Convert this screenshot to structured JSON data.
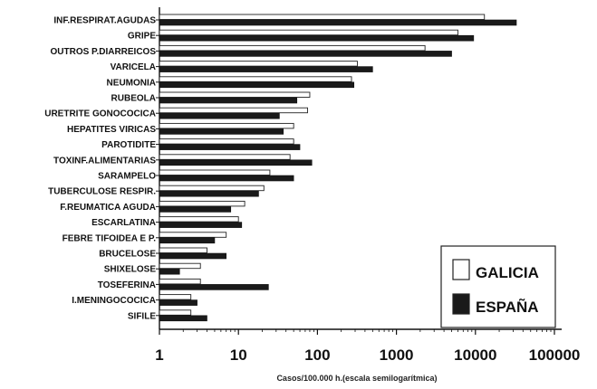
{
  "chart_data": {
    "type": "bar",
    "orientation": "horizontal",
    "x_scale": "log",
    "xlim": [
      1,
      100000
    ],
    "xlabel": "Casos/100.000 h.(escala semilogarítmica)",
    "x_ticks": [
      "1",
      "10",
      "100",
      "1000",
      "10000",
      "100000"
    ],
    "categories": [
      "INF.RESPIRAT.AGUDAS",
      "GRIPE",
      "OUTROS P.DIARREICOS",
      "VARICELA",
      "NEUMONIA",
      "RUBEOLA",
      "URETRITE GONOCOCICA",
      "HEPATITES VIRICAS",
      "PAROTIDITE",
      "TOXINF.ALIMENTARIAS",
      "SARAMPELO",
      "TUBERCULOSE RESPIR.",
      "F.REUMATICA AGUDA",
      "ESCARLATINA",
      "FEBRE TIFOIDEA E P.",
      "BRUCELOSE",
      "SHIXELOSE",
      "TOSEFERINA",
      "I.MENINGOCOCICA",
      "SIFILE"
    ],
    "series": [
      {
        "name": "GALICIA",
        "color": "#ffffff",
        "values": [
          13000,
          6000,
          2300,
          320,
          270,
          80,
          75,
          50,
          50,
          45,
          25,
          21,
          12,
          10,
          7,
          4,
          3.3,
          3.3,
          2.5,
          2.5
        ]
      },
      {
        "name": "ESPAÑA",
        "color": "#1a1a1a",
        "values": [
          33000,
          9500,
          5000,
          500,
          290,
          55,
          33,
          37,
          60,
          85,
          50,
          18,
          8,
          11,
          5,
          7,
          1.8,
          24,
          3,
          4
        ]
      }
    ],
    "legend": {
      "position": "bottom-right"
    },
    "grid": false
  }
}
